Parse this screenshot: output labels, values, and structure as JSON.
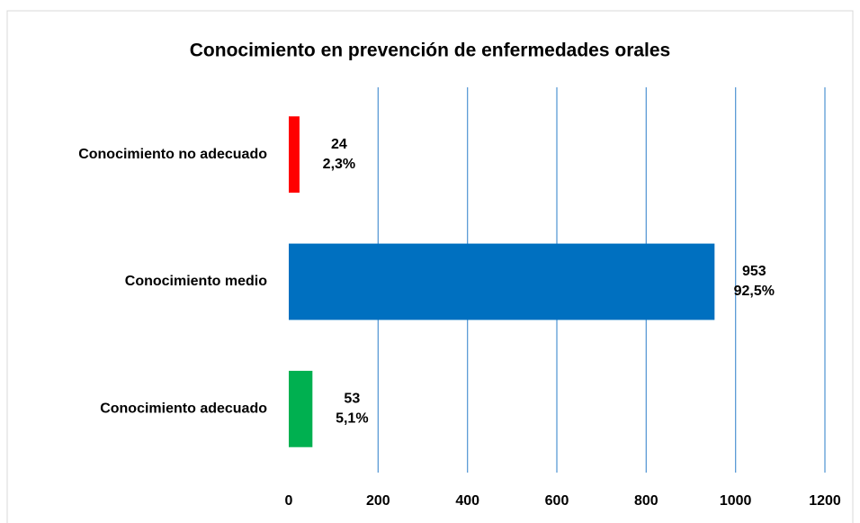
{
  "chart_data": {
    "type": "barh",
    "title": "Conocimiento en prevención de enfermedades orales",
    "categories": [
      "Conocimiento no adecuado",
      "Conocimiento medio",
      "Conocimiento adecuado"
    ],
    "values": [
      24,
      953,
      53
    ],
    "percentages": [
      2.3,
      92.5,
      5.1
    ],
    "percentage_labels": [
      "2,3%",
      "92,5%",
      "5,1%"
    ],
    "colors": [
      "#ff0000",
      "#0070c0",
      "#00b050"
    ],
    "xlim": [
      0,
      1200
    ],
    "xticks": [
      0,
      200,
      400,
      600,
      800,
      1000,
      1200
    ],
    "grid": true,
    "grid_color": "#5b9bd5"
  }
}
